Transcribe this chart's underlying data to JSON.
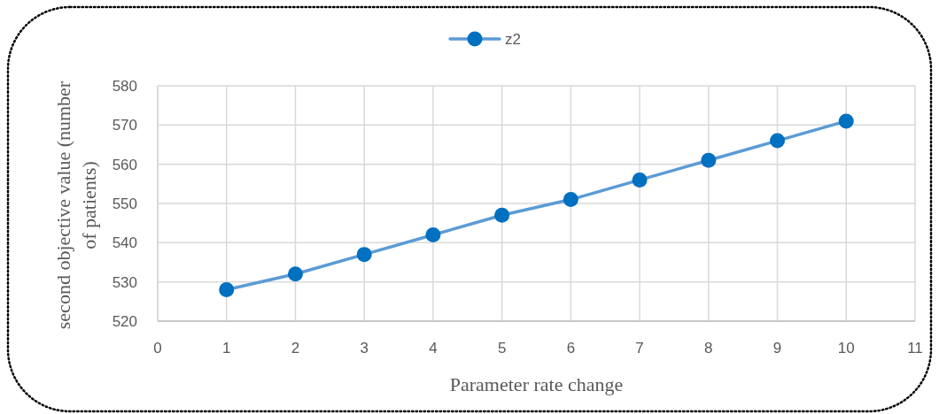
{
  "chart_data": {
    "type": "line",
    "xlabel": "Parameter rate change",
    "ylabel": "second objective value (number of patients)",
    "x": [
      1,
      2,
      3,
      4,
      5,
      6,
      7,
      8,
      9,
      10
    ],
    "series": [
      {
        "name": "z2",
        "color": "#5b9bd5",
        "colors": [
          "#0070c0",
          "#0070c0",
          "#0070c0",
          "#0070c0",
          "#0070c0",
          "#0070c0",
          "#0070c0",
          "#0070c0",
          "#0070c0",
          "#0070c0"
        ],
        "values": [
          528,
          532,
          537,
          542,
          547,
          551,
          556,
          561,
          566,
          571
        ]
      }
    ],
    "xlim": [
      0,
      11
    ],
    "xticks": [
      0,
      1,
      2,
      3,
      4,
      5,
      6,
      7,
      8,
      9,
      10,
      11
    ],
    "ylim": [
      520,
      580
    ],
    "yticks": [
      520,
      530,
      540,
      550,
      560,
      570,
      580
    ],
    "grid": true,
    "legend": "top",
    "marker": "circle",
    "line_style": "solid"
  }
}
